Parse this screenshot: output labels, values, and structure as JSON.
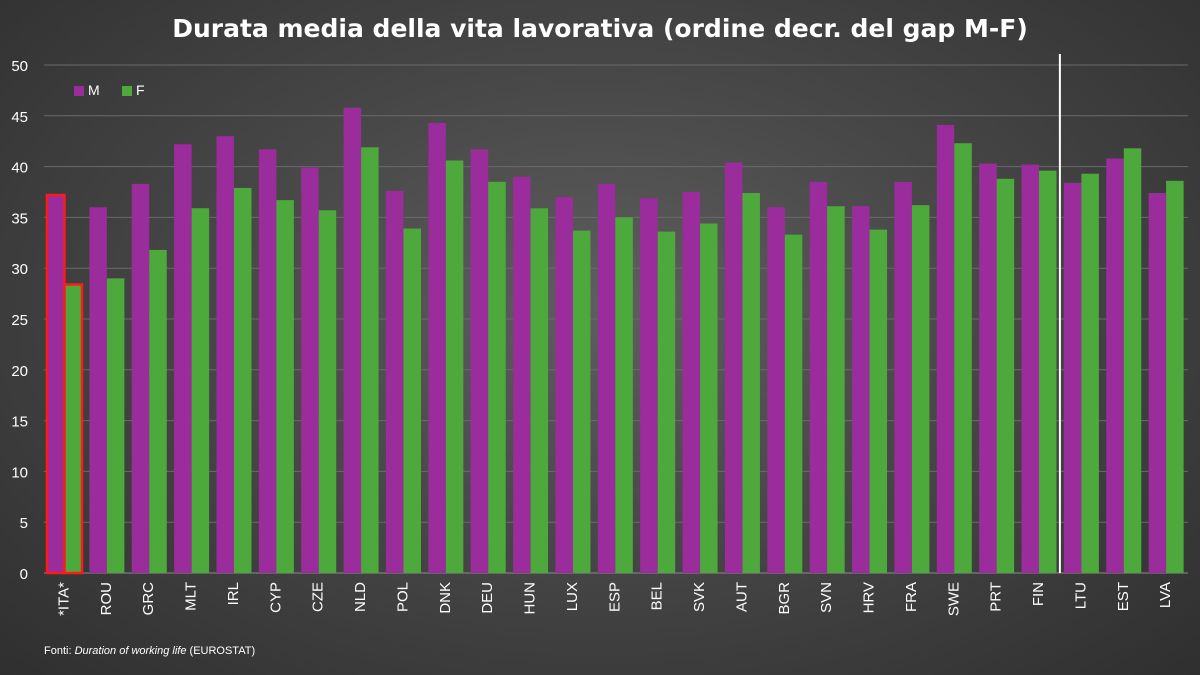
{
  "title": "Durata media della vita lavorativa (ordine decr. del gap M-F)",
  "source": {
    "prefix": "Fonti: ",
    "italic": "Duration of working life",
    "suffix": " (EUROSTAT)"
  },
  "colors": {
    "M": "#9b2c9b",
    "F": "#4ea93c",
    "highlight_outline": "#ff1a1a",
    "grid": "#6a6a6a",
    "axis_text": "#ffffff",
    "separator": "#ffffff"
  },
  "chart_data": {
    "type": "bar",
    "title": "Durata media della vita lavorativa (ordine decr. del gap M-F)",
    "categories": [
      "*ITA*",
      "ROU",
      "GRC",
      "MLT",
      "IRL",
      "CYP",
      "CZE",
      "NLD",
      "POL",
      "DNK",
      "DEU",
      "HUN",
      "LUX",
      "ESP",
      "BEL",
      "SVK",
      "AUT",
      "BGR",
      "SVN",
      "HRV",
      "FRA",
      "SWE",
      "PRT",
      "FIN",
      "LTU",
      "EST",
      "LVA"
    ],
    "series": [
      {
        "name": "M",
        "values": [
          37.2,
          36.0,
          38.3,
          42.2,
          43.0,
          41.7,
          39.9,
          45.8,
          37.6,
          44.3,
          41.7,
          39.0,
          37.0,
          38.3,
          36.9,
          37.5,
          40.4,
          36.0,
          38.5,
          36.1,
          38.5,
          44.1,
          40.3,
          40.2,
          38.4,
          40.8,
          37.4
        ]
      },
      {
        "name": "F",
        "values": [
          28.4,
          29.0,
          31.8,
          35.9,
          37.9,
          36.7,
          35.7,
          41.9,
          33.9,
          40.6,
          38.5,
          35.9,
          33.7,
          35.0,
          33.6,
          34.4,
          37.4,
          33.3,
          36.1,
          33.8,
          36.2,
          42.3,
          38.8,
          39.6,
          39.3,
          41.8,
          38.6
        ]
      }
    ],
    "highlighted_category": "*ITA*",
    "separator_after_category": "FIN",
    "ylim": [
      0,
      50
    ],
    "yticks": [
      0,
      5,
      10,
      15,
      20,
      25,
      30,
      35,
      40,
      45,
      50
    ],
    "grid": true,
    "legend": "top-left",
    "xlabel": "",
    "ylabel": ""
  }
}
